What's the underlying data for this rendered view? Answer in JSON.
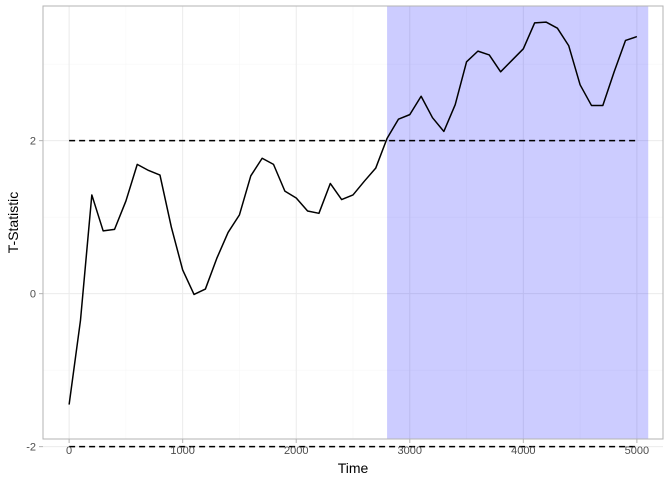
{
  "chart_data": {
    "type": "line",
    "title": "",
    "xlabel": "Time",
    "ylabel": "T-Statistic",
    "xlim": [
      -230,
      5230
    ],
    "ylim": [
      -1.9,
      3.76
    ],
    "x_ticks": [
      0,
      1000,
      2000,
      3000,
      4000,
      5000
    ],
    "x_tick_labels": [
      "0",
      "1000",
      "2000",
      "3000",
      "4000",
      "5000"
    ],
    "y_ticks": [
      -2,
      0,
      2
    ],
    "y_tick_labels": [
      "-2",
      "0",
      "2"
    ],
    "grid": true,
    "legend": "none",
    "series": [
      {
        "color": "#000000",
        "style": "solid",
        "x": [
          0,
          100,
          200,
          300,
          400,
          500,
          600,
          700,
          800,
          900,
          1000,
          1100,
          1200,
          1300,
          1400,
          1500,
          1600,
          1700,
          1800,
          1900,
          2000,
          2100,
          2200,
          2300,
          2400,
          2500,
          2600,
          2700,
          2800,
          2900,
          3000,
          3100,
          3200,
          3300,
          3400,
          3500,
          3600,
          3700,
          3800,
          3900,
          4000,
          4100,
          4200,
          4300,
          4400,
          4500,
          4600,
          4700,
          4800,
          4900,
          5000
        ],
        "values": [
          -1.45,
          -0.35,
          1.29,
          0.82,
          0.84,
          1.21,
          1.69,
          1.61,
          1.55,
          0.87,
          0.31,
          -0.01,
          0.06,
          0.46,
          0.8,
          1.03,
          1.54,
          1.77,
          1.69,
          1.34,
          1.25,
          1.08,
          1.05,
          1.44,
          1.23,
          1.29,
          1.47,
          1.64,
          2.03,
          2.28,
          2.34,
          2.58,
          2.3,
          2.12,
          2.47,
          3.03,
          3.17,
          3.12,
          2.9,
          3.05,
          3.2,
          3.54,
          3.55,
          3.47,
          3.24,
          2.73,
          2.46,
          2.46,
          2.9,
          3.31,
          3.36
        ]
      }
    ],
    "reference_lines": [
      {
        "y": 2,
        "x_range": [
          0,
          5000
        ],
        "style": "dashed",
        "color": "#000000"
      },
      {
        "y": -2,
        "x_range": [
          0,
          5000
        ],
        "style": "dashed",
        "color": "#000000"
      }
    ],
    "highlight_region": {
      "x_range": [
        2800,
        5100
      ],
      "color": "#0000ff",
      "opacity": 0.2
    },
    "colors": {
      "panel_border": "#b3b3b3",
      "grid_major": "#ebebeb",
      "grid_minor": "#f5f5f5",
      "tick_text": "#4d4d4d",
      "axis_title": "#000000"
    }
  }
}
